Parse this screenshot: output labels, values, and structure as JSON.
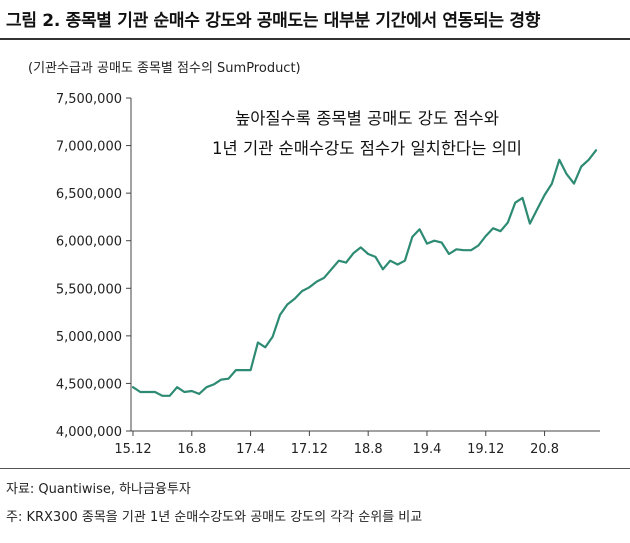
{
  "figure": {
    "title": "그림 2. 종목별 기관 순매수 강도와 공매도는 대부분 기간에서 연동되는 경향",
    "source": "자료: Quantiwise, 하나금융투자",
    "note": "주: KRX300 종목을 기관 1년 순매수강도와 공매도 강도의 각각 순위를 비교"
  },
  "chart_data": {
    "type": "line",
    "unit_label": "(기관수급과 공매도 종목별 점수의 SumProduct)",
    "annotation": [
      "높아질수록 종목별 공매도 강도 점수와",
      "1년 기관 순매수강도 점수가 일치한다는 의미"
    ],
    "ylim": [
      4000000,
      7500000
    ],
    "y_ticks": [
      4000000,
      4500000,
      5000000,
      5500000,
      6000000,
      6500000,
      7000000,
      7500000
    ],
    "y_tick_labels": [
      "4,000,000",
      "4,500,000",
      "5,000,000",
      "5,500,000",
      "6,000,000",
      "6,500,000",
      "7,000,000",
      "7,500,000"
    ],
    "x_tick_labels": [
      "15.12",
      "16.8",
      "17.4",
      "17.12",
      "18.8",
      "19.4",
      "19.12",
      "20.8"
    ],
    "x_tick_months": [
      "2015-12",
      "2016-08",
      "2017-04",
      "2017-12",
      "2018-08",
      "2019-04",
      "2019-12",
      "2020-08"
    ],
    "x": [
      "2015-12",
      "2016-01",
      "2016-02",
      "2016-03",
      "2016-04",
      "2016-05",
      "2016-06",
      "2016-07",
      "2016-08",
      "2016-09",
      "2016-10",
      "2016-11",
      "2016-12",
      "2017-01",
      "2017-02",
      "2017-03",
      "2017-04",
      "2017-05",
      "2017-06",
      "2017-07",
      "2017-08",
      "2017-09",
      "2017-10",
      "2017-11",
      "2017-12",
      "2018-01",
      "2018-02",
      "2018-03",
      "2018-04",
      "2018-05",
      "2018-06",
      "2018-07",
      "2018-08",
      "2018-09",
      "2018-10",
      "2018-11",
      "2018-12",
      "2019-01",
      "2019-02",
      "2019-03",
      "2019-04",
      "2019-05",
      "2019-06",
      "2019-07",
      "2019-08",
      "2019-09",
      "2019-10",
      "2019-11",
      "2019-12",
      "2020-01",
      "2020-02",
      "2020-03",
      "2020-04",
      "2020-05",
      "2020-06",
      "2020-07",
      "2020-08",
      "2020-09",
      "2020-10",
      "2020-11",
      "2020-12",
      "2021-01",
      "2021-02",
      "2021-03"
    ],
    "series": [
      {
        "values": [
          4460000,
          4410000,
          4410000,
          4410000,
          4370000,
          4370000,
          4460000,
          4410000,
          4420000,
          4390000,
          4460000,
          4490000,
          4540000,
          4550000,
          4640000,
          4640000,
          4640000,
          4930000,
          4880000,
          4990000,
          5220000,
          5330000,
          5390000,
          5470000,
          5510000,
          5570000,
          5610000,
          5700000,
          5790000,
          5770000,
          5870000,
          5930000,
          5860000,
          5830000,
          5700000,
          5790000,
          5750000,
          5790000,
          6040000,
          6120000,
          5970000,
          6000000,
          5980000,
          5860000,
          5910000,
          5900000,
          5900000,
          5950000,
          6050000,
          6130000,
          6100000,
          6190000,
          6400000,
          6450000,
          6180000,
          6330000,
          6480000,
          6600000,
          6850000,
          6700000,
          6600000,
          6780000,
          6850000,
          6950000
        ],
        "color": "#2e8b73"
      }
    ],
    "grid": false,
    "legend": "none"
  }
}
